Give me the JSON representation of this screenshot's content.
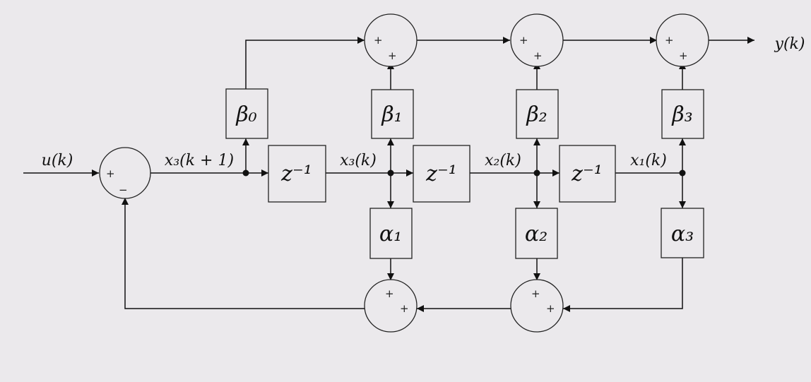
{
  "colors": {
    "background": "#ebe9ec",
    "line": "#111111"
  },
  "signals": {
    "input": "u(k)",
    "output": "y(k)",
    "x3_next": "x₃(k + 1)",
    "x3": "x₃(k)",
    "x2": "x₂(k)",
    "x1": "x₁(k)"
  },
  "blocks": {
    "delay": "z⁻¹",
    "beta0": "β₀",
    "beta1": "β₁",
    "beta2": "β₂",
    "beta3": "β₃",
    "alpha1": "α₁",
    "alpha2": "α₂",
    "alpha3": "α₃"
  },
  "signs": {
    "plus": "+",
    "minus": "−"
  }
}
